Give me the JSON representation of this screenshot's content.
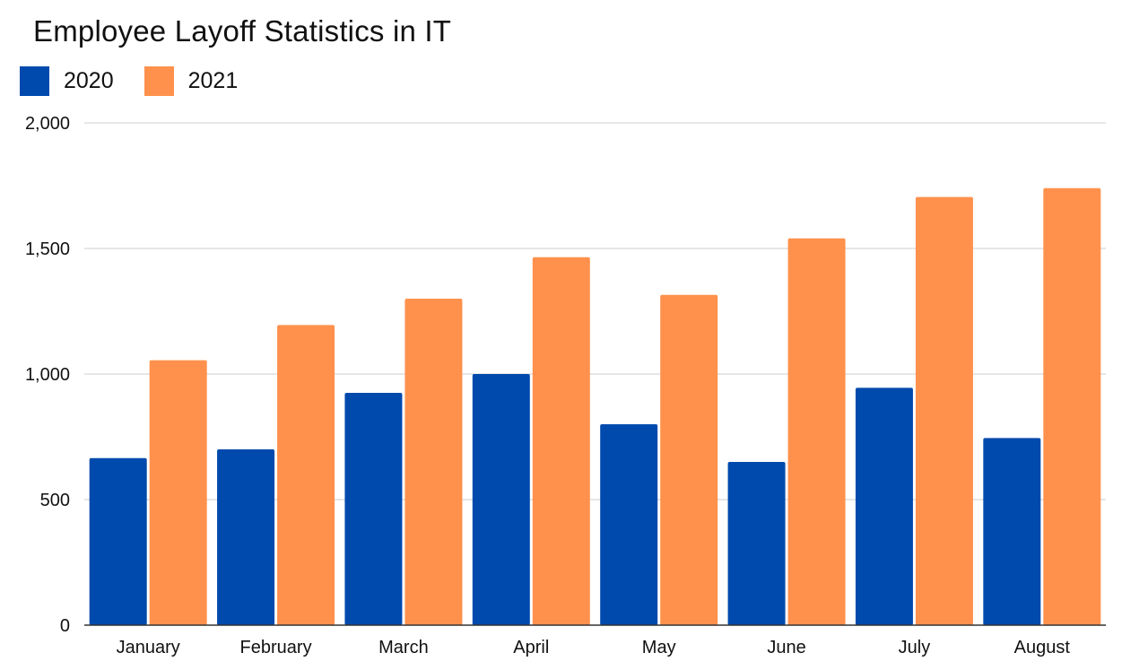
{
  "chart_data": {
    "type": "bar",
    "title": "Employee Layoff Statistics in IT",
    "xlabel": "",
    "ylabel": "",
    "categories": [
      "January",
      "February",
      "March",
      "April",
      "May",
      "June",
      "July",
      "August"
    ],
    "series": [
      {
        "name": "2020",
        "color": "#004AAD",
        "values": [
          665,
          700,
          925,
          1000,
          800,
          650,
          945,
          745
        ]
      },
      {
        "name": "2021",
        "color": "#FF914D",
        "values": [
          1055,
          1195,
          1300,
          1465,
          1315,
          1540,
          1705,
          1740
        ]
      }
    ],
    "ylim": [
      0,
      2000
    ],
    "yticks": [
      0,
      500,
      1000,
      1500,
      2000
    ],
    "ytick_labels": [
      "0",
      "500",
      "1,000",
      "1,500",
      "2,000"
    ],
    "grid": true,
    "legend_position": "top-left",
    "gridline_color": "#CCCCCC",
    "axis_color": "#333333"
  }
}
